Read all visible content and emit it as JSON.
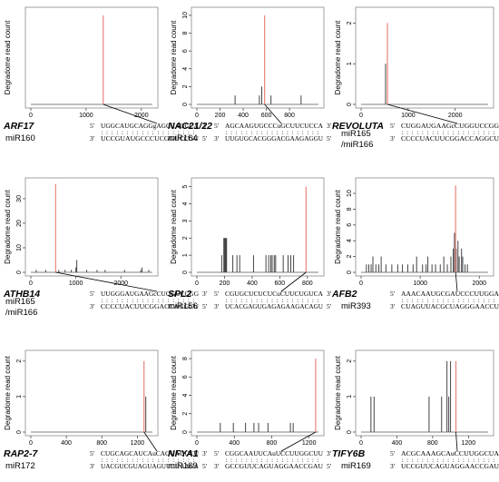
{
  "y_axis_label": "Degradome read count",
  "chart_data": [
    {
      "type": "bar",
      "gene": "ARF17",
      "mirna": "miR160",
      "seq_top": "UGGCAUGCAGGgAGCCAGGCA",
      "seq_bottom": "UCCGUAUGCCCUCGGUCCGU",
      "pairing": ": : : : : : : : : : : : : : : : : : :",
      "xlim": [
        0,
        2200
      ],
      "xticks": [
        0,
        1000,
        2000
      ],
      "ylim": [
        0,
        8.4
      ],
      "yticks": [],
      "bars": [],
      "cleavage": {
        "x": 1310,
        "y": 8
      },
      "ylabel": "Degradome read count"
    },
    {
      "type": "bar",
      "gene": "NAC21/22",
      "mirna": "miR164",
      "seq_top": "AGCAAGUGCCCuGCUUCUCCA",
      "seq_bottom": "UUGUGCACGGGACGAAGAGGU",
      "pairing": ": : : : : : : : : : : : : : : : : : :",
      "xlim": [
        0,
        1050
      ],
      "xticks": [
        0,
        200,
        400,
        600,
        800
      ],
      "ylim": [
        0,
        10.5
      ],
      "yticks": [
        0,
        2,
        4,
        6,
        8,
        10
      ],
      "bars": [
        {
          "x": 330,
          "y": 1
        },
        {
          "x": 540,
          "y": 1
        },
        {
          "x": 560,
          "y": 2
        },
        {
          "x": 640,
          "y": 1
        },
        {
          "x": 900,
          "y": 1
        }
      ],
      "cleavage": {
        "x": 585,
        "y": 10
      },
      "ylabel": "Degradome read count"
    },
    {
      "type": "bar",
      "gene": "REVOLUTA",
      "mirna": "miR165 /miR166",
      "seq_top": "CUGGAUGAAGcCUGGUCCGG",
      "seq_bottom": "CCCCUACUUCGGACCAGGCU",
      "pairing": ": : : : : : : : : : : : : : : : : : :",
      "xlim": [
        0,
        2700
      ],
      "xticks": [
        0,
        1000,
        2000
      ],
      "ylim": [
        0,
        2.3
      ],
      "yticks": [
        0,
        1,
        2
      ],
      "bars": [
        {
          "x": 520,
          "y": 1
        }
      ],
      "cleavage": {
        "x": 560,
        "y": 2
      },
      "ylabel": "Degradome read count"
    },
    {
      "type": "bar",
      "gene": "ATHB14",
      "mirna": "miR165 /miR166",
      "seq_top": "UUGGGAUGAAGcCUGGUCCGG",
      "seq_bottom": "CCCCUACUUCGGACCAGGCU",
      "pairing": ": : : : : : : : : : : : : : : : : : :",
      "xlim": [
        0,
        2700
      ],
      "xticks": [
        0,
        1000,
        2000
      ],
      "ylim": [
        0,
        37
      ],
      "yticks": [
        0,
        10,
        20,
        30
      ],
      "bars": [
        {
          "x": 120,
          "y": 1
        },
        {
          "x": 330,
          "y": 1
        },
        {
          "x": 620,
          "y": 1
        },
        {
          "x": 760,
          "y": 1
        },
        {
          "x": 900,
          "y": 1
        },
        {
          "x": 1000,
          "y": 2
        },
        {
          "x": 1020,
          "y": 5
        },
        {
          "x": 1240,
          "y": 1
        },
        {
          "x": 1470,
          "y": 1
        },
        {
          "x": 1650,
          "y": 1
        },
        {
          "x": 2080,
          "y": 1
        },
        {
          "x": 2440,
          "y": 1
        },
        {
          "x": 2470,
          "y": 2
        },
        {
          "x": 2620,
          "y": 1
        }
      ],
      "cleavage": {
        "x": 550,
        "y": 36
      },
      "ylabel": "Degradome read count"
    },
    {
      "type": "bar",
      "gene": "SPL2",
      "mirna": "miR156",
      "seq_top": "CGUGCUCUCUCuCUUCUGUCA",
      "seq_bottom": "UCACGAGUGAGAGAAGACAGU",
      "pairing": ": : : : : : : : : : : : : : : : : : :",
      "xlim": [
        0,
        880
      ],
      "xticks": [
        0,
        200,
        400,
        600,
        800
      ],
      "ylim": [
        0,
        5.3
      ],
      "yticks": [
        0,
        1,
        2,
        3,
        4,
        5
      ],
      "bars": [
        {
          "x": 180,
          "y": 1
        },
        {
          "x": 195,
          "y": 2
        },
        {
          "x": 200,
          "y": 2
        },
        {
          "x": 205,
          "y": 2
        },
        {
          "x": 210,
          "y": 2
        },
        {
          "x": 215,
          "y": 2
        },
        {
          "x": 260,
          "y": 1
        },
        {
          "x": 290,
          "y": 1
        },
        {
          "x": 310,
          "y": 1
        },
        {
          "x": 410,
          "y": 1
        },
        {
          "x": 500,
          "y": 1
        },
        {
          "x": 520,
          "y": 1
        },
        {
          "x": 535,
          "y": 1
        },
        {
          "x": 545,
          "y": 1
        },
        {
          "x": 560,
          "y": 1
        },
        {
          "x": 570,
          "y": 1
        },
        {
          "x": 625,
          "y": 1
        },
        {
          "x": 660,
          "y": 1
        },
        {
          "x": 680,
          "y": 1
        },
        {
          "x": 700,
          "y": 1
        }
      ],
      "cleavage": {
        "x": 790,
        "y": 5
      },
      "ylabel": "Degradome read count"
    },
    {
      "type": "bar",
      "gene": "AFB2",
      "mirna": "miR393",
      "seq_top": "AAACAAUGCGAUCCCUUGGA",
      "seq_bottom": "CUAGUUACGCUAGGGAACCU",
      "pairing": ": : : : : : : : : : : : : : : : : : :",
      "xlim": [
        0,
        2150
      ],
      "xticks": [
        0,
        1000,
        2000
      ],
      "ylim": [
        0,
        11.5
      ],
      "yticks": [
        0,
        2,
        4,
        6,
        8,
        10
      ],
      "bars": [
        {
          "x": 90,
          "y": 1
        },
        {
          "x": 130,
          "y": 1
        },
        {
          "x": 170,
          "y": 1
        },
        {
          "x": 200,
          "y": 2
        },
        {
          "x": 250,
          "y": 1
        },
        {
          "x": 300,
          "y": 1
        },
        {
          "x": 340,
          "y": 2
        },
        {
          "x": 420,
          "y": 1
        },
        {
          "x": 520,
          "y": 1
        },
        {
          "x": 620,
          "y": 1
        },
        {
          "x": 700,
          "y": 1
        },
        {
          "x": 790,
          "y": 1
        },
        {
          "x": 880,
          "y": 1
        },
        {
          "x": 940,
          "y": 2
        },
        {
          "x": 1040,
          "y": 1
        },
        {
          "x": 1100,
          "y": 1
        },
        {
          "x": 1130,
          "y": 2
        },
        {
          "x": 1200,
          "y": 1
        },
        {
          "x": 1260,
          "y": 1
        },
        {
          "x": 1340,
          "y": 1
        },
        {
          "x": 1400,
          "y": 2
        },
        {
          "x": 1460,
          "y": 1
        },
        {
          "x": 1520,
          "y": 2
        },
        {
          "x": 1560,
          "y": 3
        },
        {
          "x": 1580,
          "y": 5
        },
        {
          "x": 1610,
          "y": 3
        },
        {
          "x": 1640,
          "y": 4
        },
        {
          "x": 1660,
          "y": 2
        },
        {
          "x": 1700,
          "y": 3
        },
        {
          "x": 1720,
          "y": 2
        },
        {
          "x": 1760,
          "y": 1
        },
        {
          "x": 1800,
          "y": 1
        }
      ],
      "cleavage": {
        "x": 1600,
        "y": 11
      },
      "ylabel": "Degradome read count"
    },
    {
      "type": "bar",
      "gene": "RAP2-7",
      "mirna": "miR172",
      "seq_top": "CUGCAGCAUCAuCAGGAUUCU",
      "seq_bottom": "UACGUCGUAGUAGUUCUAAGA",
      "pairing": ": : : : : : : : : : : : : : : : : : :",
      "xlim": [
        0,
        1370
      ],
      "xticks": [
        0,
        400,
        800,
        1200
      ],
      "ylim": [
        0,
        2.2
      ],
      "yticks": [
        0,
        1,
        2
      ],
      "bars": [
        {
          "x": 1295,
          "y": 1
        }
      ],
      "cleavage": {
        "x": 1275,
        "y": 2
      },
      "ylabel": "Degradome read count"
    },
    {
      "type": "bar",
      "gene": "NFYA1",
      "mirna": "miR169",
      "seq_top": "CGGCAAUUCAuUCCUUGGCUU",
      "seq_bottom": "GCCGUUCAGUAGGAACCGAU",
      "pairing": ": : : : : : : : : : : : : : : : : : :",
      "xlim": [
        0,
        1300
      ],
      "xticks": [
        0,
        400,
        800,
        1200
      ],
      "ylim": [
        0,
        8.5
      ],
      "yticks": [
        0,
        2,
        4,
        6,
        8
      ],
      "bars": [
        {
          "x": 250,
          "y": 1
        },
        {
          "x": 390,
          "y": 1
        },
        {
          "x": 520,
          "y": 1
        },
        {
          "x": 610,
          "y": 1
        },
        {
          "x": 660,
          "y": 1
        },
        {
          "x": 760,
          "y": 1
        },
        {
          "x": 1000,
          "y": 1
        },
        {
          "x": 1030,
          "y": 1
        }
      ],
      "cleavage": {
        "x": 1270,
        "y": 8
      },
      "ylabel": "Degradome read count"
    },
    {
      "type": "bar",
      "gene": "TIFY6B",
      "mirna": "miR169",
      "seq_top": "ACGCAAAGCAuCCUUGGCUA",
      "seq_bottom": "UCCGUUCAGUAGGAACCGAU",
      "pairing": ": : : : : : : : : : : : : : : : : : :",
      "xlim": [
        0,
        1420
      ],
      "xticks": [
        0,
        400,
        800,
        1200
      ],
      "ylim": [
        0,
        2.2
      ],
      "yticks": [
        0,
        1,
        2
      ],
      "bars": [
        {
          "x": 110,
          "y": 1
        },
        {
          "x": 145,
          "y": 1
        },
        {
          "x": 760,
          "y": 1
        },
        {
          "x": 900,
          "y": 1
        },
        {
          "x": 960,
          "y": 2
        },
        {
          "x": 980,
          "y": 1
        },
        {
          "x": 1000,
          "y": 2
        }
      ],
      "cleavage": {
        "x": 1060,
        "y": 2
      },
      "ylabel": "Degradome read count"
    }
  ]
}
